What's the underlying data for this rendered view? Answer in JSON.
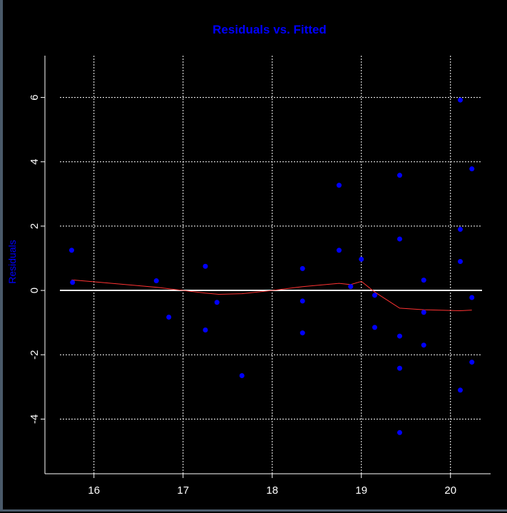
{
  "chart_data": {
    "type": "scatter",
    "title": "Residuals vs. Fitted",
    "xlabel": "",
    "ylabel": "Residuals",
    "xlim": [
      15.45,
      20.45
    ],
    "ylim": [
      -5.7,
      7.3
    ],
    "x_ticks": [
      16,
      17,
      18,
      19,
      20
    ],
    "y_ticks": [
      -4,
      -2,
      0,
      2,
      4,
      6
    ],
    "grid": true,
    "points": [
      {
        "x": 15.75,
        "y": 1.25
      },
      {
        "x": 15.76,
        "y": 0.25
      },
      {
        "x": 16.7,
        "y": 0.3
      },
      {
        "x": 16.84,
        "y": -0.83
      },
      {
        "x": 17.25,
        "y": 0.75
      },
      {
        "x": 17.25,
        "y": -1.23
      },
      {
        "x": 17.38,
        "y": -0.37
      },
      {
        "x": 17.66,
        "y": -2.65
      },
      {
        "x": 18.34,
        "y": 0.68
      },
      {
        "x": 18.34,
        "y": -0.33
      },
      {
        "x": 18.34,
        "y": -1.32
      },
      {
        "x": 18.75,
        "y": 3.27
      },
      {
        "x": 18.75,
        "y": 1.25
      },
      {
        "x": 18.88,
        "y": 0.12
      },
      {
        "x": 19.0,
        "y": 0.97
      },
      {
        "x": 19.15,
        "y": -0.15
      },
      {
        "x": 19.15,
        "y": -1.15
      },
      {
        "x": 19.43,
        "y": 3.58
      },
      {
        "x": 19.43,
        "y": 1.6
      },
      {
        "x": 19.43,
        "y": -1.42
      },
      {
        "x": 19.43,
        "y": -2.42
      },
      {
        "x": 19.43,
        "y": -4.42
      },
      {
        "x": 19.7,
        "y": 0.32
      },
      {
        "x": 19.7,
        "y": -0.68
      },
      {
        "x": 19.7,
        "y": -1.7
      },
      {
        "x": 20.11,
        "y": 5.92
      },
      {
        "x": 20.11,
        "y": 1.9
      },
      {
        "x": 20.11,
        "y": 0.9
      },
      {
        "x": 20.11,
        "y": -3.1
      },
      {
        "x": 20.24,
        "y": 3.78
      },
      {
        "x": 20.24,
        "y": -0.22
      },
      {
        "x": 20.24,
        "y": -2.23
      }
    ],
    "smooth_line": {
      "x": [
        15.75,
        16.2,
        16.7,
        17.0,
        17.25,
        17.4,
        17.66,
        18.0,
        18.34,
        18.75,
        18.88,
        19.0,
        19.15,
        19.43,
        19.7,
        20.11,
        20.24
      ],
      "y": [
        0.33,
        0.22,
        0.1,
        0.0,
        -0.08,
        -0.12,
        -0.1,
        0.0,
        0.12,
        0.22,
        0.18,
        0.28,
        -0.05,
        -0.55,
        -0.6,
        -0.63,
        -0.61
      ]
    },
    "reference_line_y": 0,
    "colors": {
      "background": "#000000",
      "title": "#0000ff",
      "ylabel": "#0000ff",
      "points": "#0000ff",
      "smooth": "#ff3333",
      "reference": "#ffffff",
      "grid": "#ffffff",
      "ticks": "#ffffff"
    }
  }
}
